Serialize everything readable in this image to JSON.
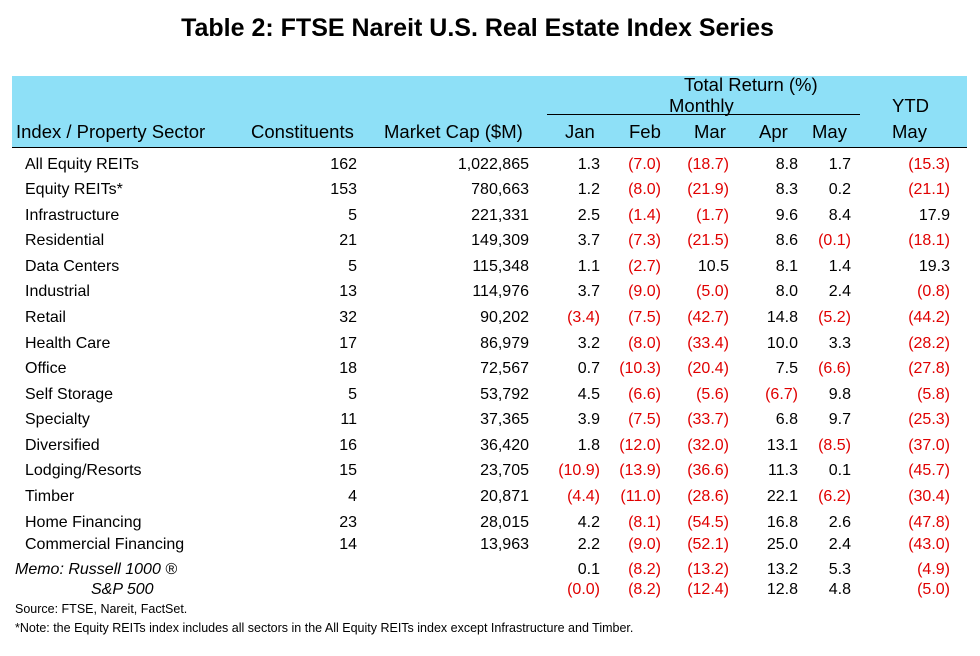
{
  "title": "Table 2: FTSE Nareit U.S. Real Estate Index Series",
  "header": {
    "total_return": "Total Return (%)",
    "monthly": "Monthly",
    "ytd": "YTD",
    "col_index": "Index / Property Sector",
    "col_constituents": "Constituents",
    "col_market_cap": "Market Cap ($M)",
    "months": [
      "Jan",
      "Feb",
      "Mar",
      "Apr",
      "May"
    ],
    "ytd_month": "May"
  },
  "rows": [
    {
      "name": "All Equity REITs",
      "constituents": "162",
      "market_cap": "1,022,865",
      "returns": [
        "1.3",
        "(7.0)",
        "(18.7)",
        "8.8",
        "1.7"
      ],
      "ytd": "(15.3)"
    },
    {
      "name": "Equity REITs*",
      "constituents": "153",
      "market_cap": "780,663",
      "returns": [
        "1.2",
        "(8.0)",
        "(21.9)",
        "8.3",
        "0.2"
      ],
      "ytd": "(21.1)"
    },
    {
      "name": "Infrastructure",
      "constituents": "5",
      "market_cap": "221,331",
      "returns": [
        "2.5",
        "(1.4)",
        "(1.7)",
        "9.6",
        "8.4"
      ],
      "ytd": "17.9"
    },
    {
      "name": "Residential",
      "constituents": "21",
      "market_cap": "149,309",
      "returns": [
        "3.7",
        "(7.3)",
        "(21.5)",
        "8.6",
        "(0.1)"
      ],
      "ytd": "(18.1)"
    },
    {
      "name": "Data Centers",
      "constituents": "5",
      "market_cap": "115,348",
      "returns": [
        "1.1",
        "(2.7)",
        "10.5",
        "8.1",
        "1.4"
      ],
      "ytd": "19.3"
    },
    {
      "name": "Industrial",
      "constituents": "13",
      "market_cap": "114,976",
      "returns": [
        "3.7",
        "(9.0)",
        "(5.0)",
        "8.0",
        "2.4"
      ],
      "ytd": "(0.8)"
    },
    {
      "name": "Retail",
      "constituents": "32",
      "market_cap": "90,202",
      "returns": [
        "(3.4)",
        "(7.5)",
        "(42.7)",
        "14.8",
        "(5.2)"
      ],
      "ytd": "(44.2)"
    },
    {
      "name": "Health Care",
      "constituents": "17",
      "market_cap": "86,979",
      "returns": [
        "3.2",
        "(8.0)",
        "(33.4)",
        "10.0",
        "3.3"
      ],
      "ytd": "(28.2)"
    },
    {
      "name": "Office",
      "constituents": "18",
      "market_cap": "72,567",
      "returns": [
        "0.7",
        "(10.3)",
        "(20.4)",
        "7.5",
        "(6.6)"
      ],
      "ytd": "(27.8)"
    },
    {
      "name": "Self Storage",
      "constituents": "5",
      "market_cap": "53,792",
      "returns": [
        "4.5",
        "(6.6)",
        "(5.6)",
        "(6.7)",
        "9.8"
      ],
      "ytd": "(5.8)"
    },
    {
      "name": "Specialty",
      "constituents": "11",
      "market_cap": "37,365",
      "returns": [
        "3.9",
        "(7.5)",
        "(33.7)",
        "6.8",
        "9.7"
      ],
      "ytd": "(25.3)"
    },
    {
      "name": "Diversified",
      "constituents": "16",
      "market_cap": "36,420",
      "returns": [
        "1.8",
        "(12.0)",
        "(32.0)",
        "13.1",
        "(8.5)"
      ],
      "ytd": "(37.0)"
    },
    {
      "name": "Lodging/Resorts",
      "constituents": "15",
      "market_cap": "23,705",
      "returns": [
        "(10.9)",
        "(13.9)",
        "(36.6)",
        "11.3",
        "0.1"
      ],
      "ytd": "(45.7)"
    },
    {
      "name": "Timber",
      "constituents": "4",
      "market_cap": "20,871",
      "returns": [
        "(4.4)",
        "(11.0)",
        "(28.6)",
        "22.1",
        "(6.2)"
      ],
      "ytd": "(30.4)"
    },
    {
      "name": "Home Financing",
      "constituents": "23",
      "market_cap": "28,015",
      "returns": [
        "4.2",
        "(8.1)",
        "(54.5)",
        "16.8",
        "2.6"
      ],
      "ytd": "(47.8)"
    },
    {
      "name": "Commercial Financing",
      "constituents": "14",
      "market_cap": "13,963",
      "returns": [
        "2.2",
        "(9.0)",
        "(52.1)",
        "25.0",
        "2.4"
      ],
      "ytd": "(43.0)"
    }
  ],
  "memo": [
    {
      "name": "Memo: Russell 1000 ®",
      "returns": [
        "0.1",
        "(8.2)",
        "(13.2)",
        "13.2",
        "5.3"
      ],
      "ytd": "(4.9)"
    },
    {
      "name": "S&P 500",
      "returns": [
        "(0.0)",
        "(8.2)",
        "(12.4)",
        "12.8",
        "4.8"
      ],
      "ytd": "(5.0)"
    }
  ],
  "footnotes": {
    "source": "Source: FTSE, Nareit, FactSet.",
    "note": "*Note: the Equity REITs index includes all sectors in the All Equity REITs index except Infrastructure and Timber."
  },
  "colors": {
    "header_bg": "#8ee0f7",
    "negative": "#e00000"
  }
}
